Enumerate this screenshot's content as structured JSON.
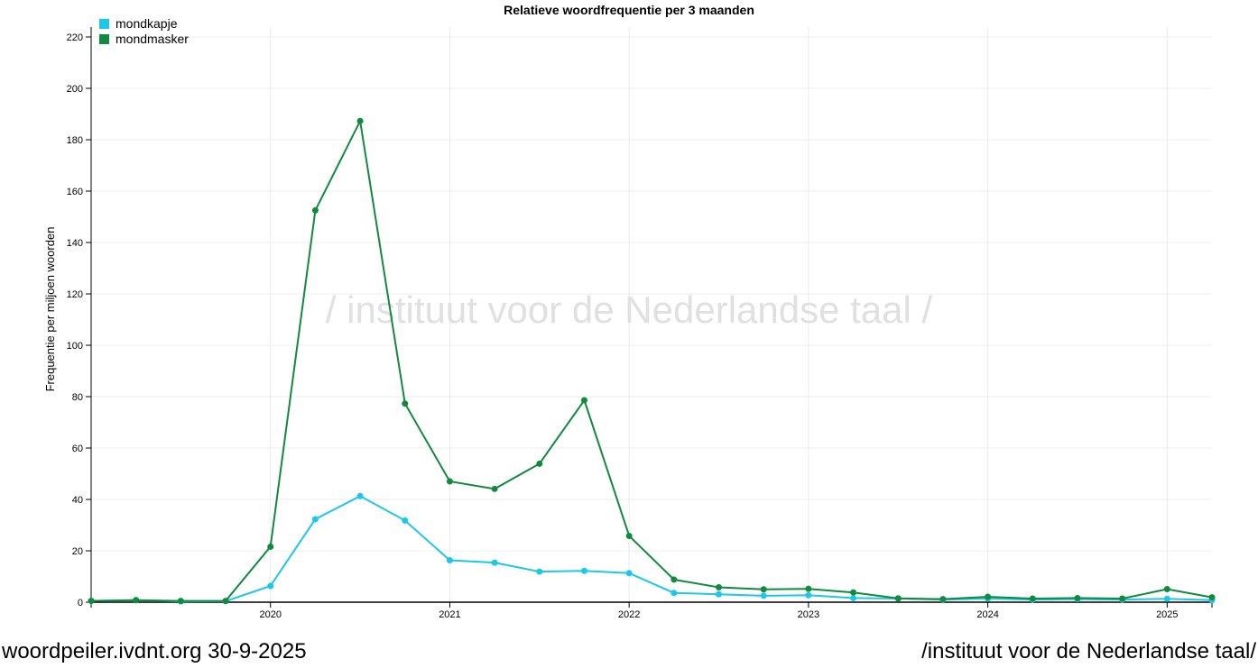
{
  "chart_data": {
    "type": "line",
    "title": "Relatieve woordfrequentie per 3 maanden",
    "ylabel": "Frequentie per miljoen woorden",
    "xlabel": "",
    "watermark": "/ instituut voor de Nederlandse taal /",
    "ylim": [
      0,
      220
    ],
    "yticks": [
      0,
      20,
      40,
      60,
      80,
      100,
      120,
      140,
      160,
      180,
      200,
      220
    ],
    "xticks": [
      "2020",
      "2021",
      "2022",
      "2023",
      "2024",
      "2025"
    ],
    "grid": true,
    "legend_position": "top-left",
    "x": [
      "2019-01",
      "2019-04",
      "2019-07",
      "2019-10",
      "2020-01",
      "2020-04",
      "2020-07",
      "2020-10",
      "2021-01",
      "2021-04",
      "2021-07",
      "2021-10",
      "2022-01",
      "2022-04",
      "2022-07",
      "2022-10",
      "2023-01",
      "2023-04",
      "2023-07",
      "2023-10",
      "2024-01",
      "2024-04",
      "2024-07",
      "2024-10",
      "2025-01",
      "2025-04"
    ],
    "series": [
      {
        "name": "mondkapje",
        "color": "#1cc8e8",
        "values": [
          0.5,
          0.8,
          0.3,
          0.4,
          6.3,
          32.3,
          41.3,
          31.8,
          16.3,
          15.4,
          11.9,
          12.2,
          11.3,
          3.6,
          3.1,
          2.5,
          2.7,
          1.6,
          1.4,
          1.0,
          1.4,
          1.0,
          1.2,
          1.0,
          1.3,
          0.8
        ]
      },
      {
        "name": "mondmasker",
        "color": "#118a3e",
        "values": [
          0.5,
          0.8,
          0.5,
          0.5,
          21.6,
          152.5,
          187.3,
          77.3,
          47.0,
          44.1,
          53.9,
          78.6,
          25.8,
          8.8,
          5.8,
          5.0,
          5.2,
          3.8,
          1.5,
          1.2,
          2.1,
          1.4,
          1.6,
          1.4,
          5.1,
          1.9
        ]
      }
    ]
  },
  "footer": {
    "left": "woordpeiler.ivdnt.org 30-9-2025",
    "right": "/instituut voor de Nederlandse taal/"
  }
}
